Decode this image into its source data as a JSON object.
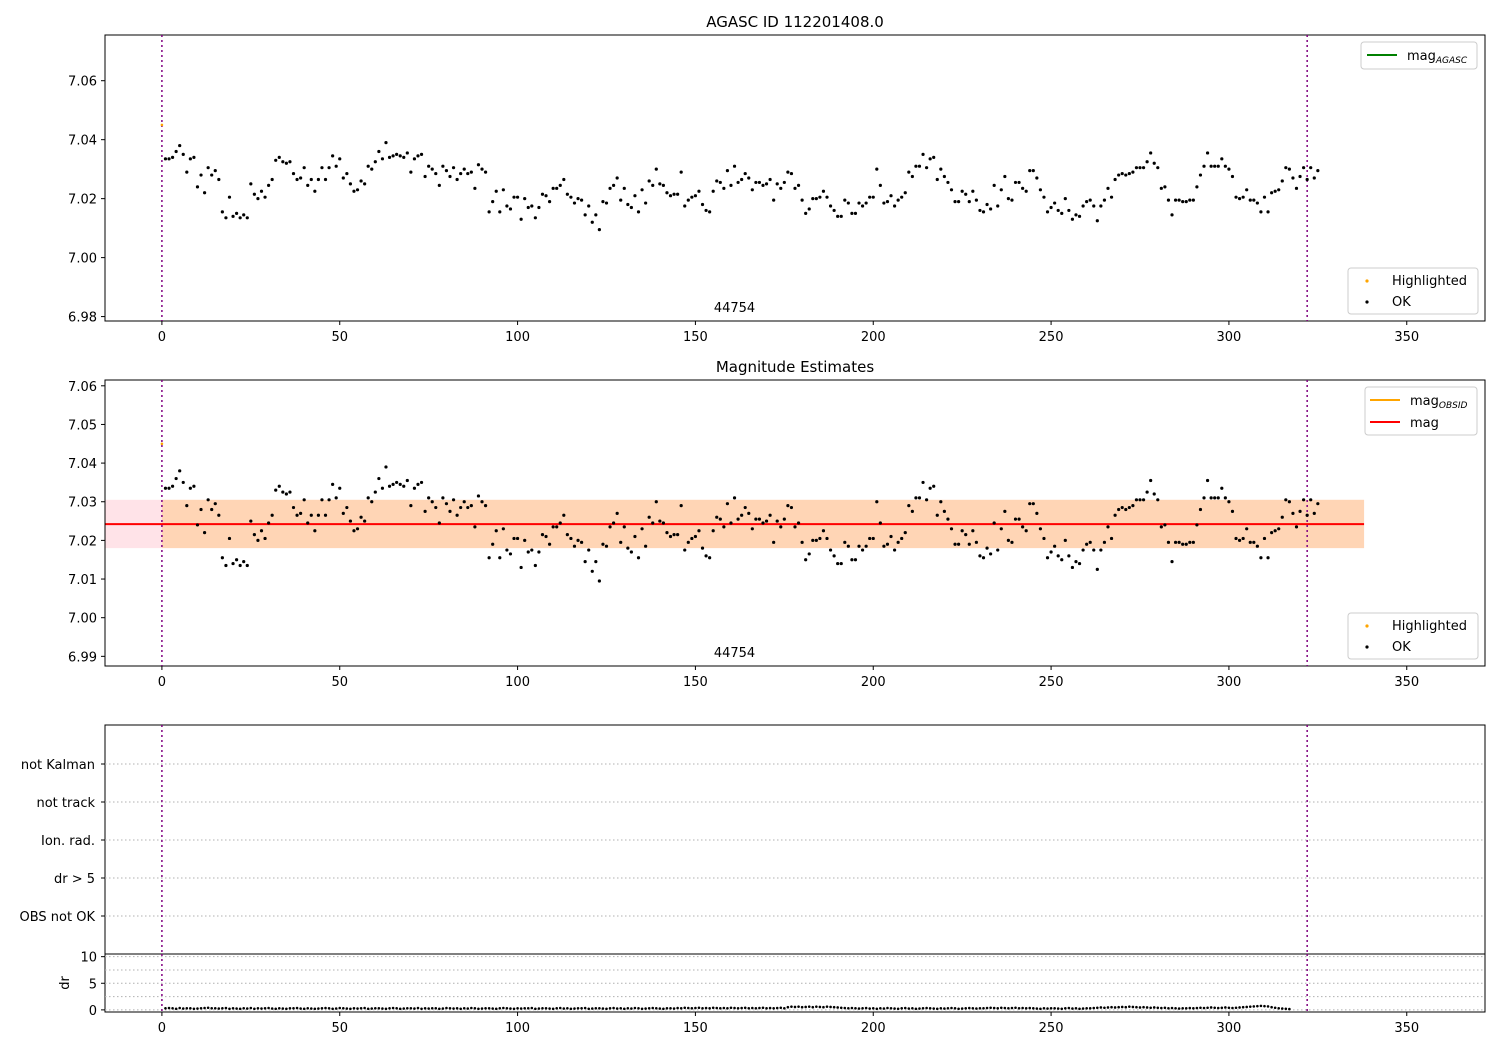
{
  "chart_data": [
    {
      "type": "scatter",
      "title": "AGASC ID 112201408.0",
      "xlim": [
        -16,
        372
      ],
      "ylim": [
        6.9785,
        7.0755
      ],
      "xticks": [
        "0",
        "50",
        "100",
        "150",
        "200",
        "250",
        "300",
        "350"
      ],
      "yticks": [
        "6.98",
        "7.00",
        "7.02",
        "7.04",
        "7.06"
      ],
      "vlines": [
        0,
        322
      ],
      "obsid_labels": [
        {
          "x": 161,
          "text": "44754"
        }
      ],
      "highlighted": [
        {
          "x": 0,
          "y": 7.045
        }
      ],
      "legend_lines": [
        {
          "label": "mag",
          "sub": "AGASC",
          "color": "#008000"
        }
      ],
      "legend_points": [
        {
          "label": "Highlighted",
          "color": "#ffa500"
        },
        {
          "label": "OK",
          "color": "#000000"
        }
      ],
      "series_ref": "mag_series"
    },
    {
      "type": "scatter",
      "title": "Magnitude Estimates",
      "xlim": [
        -16,
        372
      ],
      "ylim": [
        6.9875,
        7.0615
      ],
      "xticks": [
        "0",
        "50",
        "100",
        "150",
        "200",
        "250",
        "300",
        "350"
      ],
      "yticks": [
        "6.99",
        "7.00",
        "7.01",
        "7.02",
        "7.03",
        "7.04",
        "7.05",
        "7.06"
      ],
      "vlines": [
        0,
        322
      ],
      "obsid_labels": [
        {
          "x": 161,
          "text": "44754"
        }
      ],
      "highlighted": [
        {
          "x": 0,
          "y": 7.045
        }
      ],
      "mean_line": {
        "value": 7.0242,
        "x_range": [
          -16,
          338
        ],
        "color": "#ff0000"
      },
      "band_outer": {
        "low": 7.018,
        "high": 7.0305,
        "x_range": [
          -16,
          338
        ],
        "color": "#ffc0cb"
      },
      "band_inner": {
        "low": 7.018,
        "high": 7.0305,
        "x_range": [
          0,
          338
        ],
        "color": "#ffa500"
      },
      "legend_lines": [
        {
          "label": "mag",
          "sub": "OBSID",
          "color": "#ffa500"
        },
        {
          "label": "mag",
          "sub": "",
          "color": "#ff0000"
        }
      ],
      "legend_points": [
        {
          "label": "Highlighted",
          "color": "#ffa500"
        },
        {
          "label": "OK",
          "color": "#000000"
        }
      ],
      "series_ref": "mag_series"
    },
    {
      "type": "scatter",
      "title": "",
      "xlim": [
        -16,
        372
      ],
      "categories": [
        "not Kalman",
        "not track",
        "Ion. rad.",
        "dr > 5",
        "OBS not OK"
      ],
      "vlines": [
        0,
        322
      ],
      "grid": "horizontal dotted"
    },
    {
      "type": "scatter",
      "title": "",
      "ylabel": "dr",
      "xlim": [
        -16,
        372
      ],
      "ylim": [
        -0.4,
        10.5
      ],
      "xticks": [
        "0",
        "50",
        "100",
        "150",
        "200",
        "250",
        "300",
        "350"
      ],
      "yticks": [
        "0",
        "5",
        "10"
      ],
      "vlines": [
        0,
        322
      ],
      "series_ref": "dr_series"
    }
  ],
  "mag_series": {
    "x_start": 1,
    "x_step": 1,
    "y": [
      7.0335,
      7.0335,
      7.034,
      7.036,
      7.038,
      7.035,
      7.029,
      7.0335,
      7.034,
      7.024,
      7.028,
      7.022,
      7.0305,
      7.028,
      7.0295,
      7.0265,
      7.0155,
      7.0135,
      7.0205,
      7.014,
      7.015,
      7.0135,
      7.0145,
      7.0135,
      7.025,
      7.0215,
      7.02,
      7.0225,
      7.0205,
      7.0245,
      7.0265,
      7.033,
      7.034,
      7.0325,
      7.032,
      7.0325,
      7.0285,
      7.0265,
      7.027,
      7.0305,
      7.0245,
      7.0265,
      7.0225,
      7.0265,
      7.0305,
      7.0265,
      7.0305,
      7.0345,
      7.031,
      7.0335,
      7.027,
      7.0285,
      7.025,
      7.0225,
      7.023,
      7.026,
      7.025,
      7.031,
      7.03,
      7.0325,
      7.036,
      7.0335,
      7.039,
      7.034,
      7.0345,
      7.035,
      7.0345,
      7.034,
      7.0355,
      7.029,
      7.0335,
      7.0345,
      7.035,
      7.0275,
      7.031,
      7.03,
      7.0285,
      7.0245,
      7.031,
      7.0295,
      7.0275,
      7.0305,
      7.0265,
      7.0285,
      7.03,
      7.0285,
      7.029,
      7.0235,
      7.0315,
      7.03,
      7.029,
      7.0155,
      7.019,
      7.0225,
      7.0155,
      7.023,
      7.0175,
      7.0165,
      7.0205,
      7.0205,
      7.013,
      7.02,
      7.017,
      7.0175,
      7.0135,
      7.017,
      7.0215,
      7.021,
      7.019,
      7.0235,
      7.0235,
      7.0245,
      7.0265,
      7.0215,
      7.0205,
      7.0185,
      7.02,
      7.0195,
      7.0145,
      7.0175,
      7.012,
      7.0145,
      7.0095,
      7.019,
      7.0185,
      7.0235,
      7.0245,
      7.027,
      7.0195,
      7.0235,
      7.018,
      7.017,
      7.021,
      7.0155,
      7.023,
      7.0185,
      7.026,
      7.0245,
      7.03,
      7.025,
      7.0245,
      7.022,
      7.021,
      7.0215,
      7.0215,
      7.029,
      7.0175,
      7.0195,
      7.0205,
      7.021,
      7.0225,
      7.018,
      7.016,
      7.0155,
      7.0225,
      7.026,
      7.0255,
      7.0235,
      7.0295,
      7.0245,
      7.031,
      7.0255,
      7.0265,
      7.0285,
      7.027,
      7.023,
      7.0255,
      7.0255,
      7.0245,
      7.025,
      7.0265,
      7.0195,
      7.025,
      7.0235,
      7.0255,
      7.029,
      7.0285,
      7.0235,
      7.0245,
      7.0195,
      7.015,
      7.0165,
      7.02,
      7.02,
      7.0205,
      7.0225,
      7.0205,
      7.0175,
      7.016,
      7.014,
      7.014,
      7.0195,
      7.0185,
      7.015,
      7.015,
      7.0185,
      7.0175,
      7.0185,
      7.0205,
      7.0205,
      7.03,
      7.0245,
      7.0185,
      7.019,
      7.021,
      7.0175,
      7.0195,
      7.0205,
      7.022,
      7.029,
      7.0275,
      7.031,
      7.031,
      7.035,
      7.0305,
      7.0335,
      7.034,
      7.0265,
      7.03,
      7.0275,
      7.0255,
      7.023,
      7.019,
      7.019,
      7.0225,
      7.0215,
      7.019,
      7.0225,
      7.0195,
      7.016,
      7.0155,
      7.018,
      7.0165,
      7.0245,
      7.0175,
      7.023,
      7.0275,
      7.02,
      7.0195,
      7.0255,
      7.0255,
      7.0235,
      7.0225,
      7.0295,
      7.0295,
      7.027,
      7.023,
      7.0205,
      7.0155,
      7.017,
      7.0185,
      7.016,
      7.015,
      7.02,
      7.016,
      7.013,
      7.0145,
      7.014,
      7.0175,
      7.019,
      7.0195,
      7.0175,
      7.0125,
      7.0175,
      7.0195,
      7.0235,
      7.0205,
      7.0265,
      7.028,
      7.0285,
      7.028,
      7.0285,
      7.029,
      7.0305,
      7.0305,
      7.0305,
      7.0325,
      7.0355,
      7.032,
      7.0305,
      7.0235,
      7.024,
      7.0195,
      7.0145,
      7.0195,
      7.0195,
      7.019,
      7.019,
      7.0195,
      7.0195,
      7.024,
      7.028,
      7.031,
      7.0355,
      7.031,
      7.031,
      7.031,
      7.0335,
      7.031,
      7.03,
      7.0275,
      7.0205,
      7.02,
      7.0205,
      7.023,
      7.0195,
      7.0195,
      7.0185,
      7.0155,
      7.0205,
      7.0155,
      7.022,
      7.0225,
      7.023,
      7.026,
      7.0305,
      7.03,
      7.027,
      7.0235,
      7.0275,
      7.0305,
      7.0265,
      7.0305,
      7.027,
      7.0295
    ]
  },
  "dr_series": {
    "x_start": 1,
    "x_step": 1,
    "y": [
      0.3,
      0.35,
      0.3,
      0.2,
      0.35,
      0.25,
      0.3,
      0.3,
      0.2,
      0.25,
      0.3,
      0.35,
      0.4,
      0.3,
      0.3,
      0.25,
      0.3,
      0.35,
      0.2,
      0.3,
      0.25,
      0.2,
      0.3,
      0.25,
      0.35,
      0.2,
      0.3,
      0.25,
      0.3,
      0.35,
      0.25,
      0.2,
      0.3,
      0.25,
      0.2,
      0.3,
      0.3,
      0.35,
      0.25,
      0.2,
      0.3,
      0.25,
      0.2,
      0.25,
      0.3,
      0.35,
      0.3,
      0.2,
      0.25,
      0.35,
      0.3,
      0.25,
      0.2,
      0.3,
      0.25,
      0.3,
      0.35,
      0.2,
      0.25,
      0.3,
      0.3,
      0.25,
      0.2,
      0.3,
      0.35,
      0.3,
      0.2,
      0.25,
      0.3,
      0.3,
      0.25,
      0.35,
      0.2,
      0.3,
      0.25,
      0.3,
      0.3,
      0.2,
      0.25,
      0.35,
      0.3,
      0.25,
      0.3,
      0.2,
      0.3,
      0.25,
      0.35,
      0.3,
      0.2,
      0.25,
      0.3,
      0.3,
      0.25,
      0.2,
      0.3,
      0.35,
      0.3,
      0.25,
      0.2,
      0.3,
      0.25,
      0.3,
      0.3,
      0.35,
      0.2,
      0.25,
      0.3,
      0.3,
      0.25,
      0.2,
      0.3,
      0.35,
      0.25,
      0.3,
      0.2,
      0.25,
      0.3,
      0.3,
      0.35,
      0.2,
      0.25,
      0.3,
      0.3,
      0.25,
      0.2,
      0.3,
      0.35,
      0.25,
      0.3,
      0.2,
      0.3,
      0.25,
      0.35,
      0.3,
      0.2,
      0.25,
      0.3,
      0.35,
      0.3,
      0.25,
      0.2,
      0.3,
      0.3,
      0.25,
      0.35,
      0.3,
      0.4,
      0.35,
      0.3,
      0.35,
      0.4,
      0.3,
      0.35,
      0.3,
      0.4,
      0.35,
      0.3,
      0.35,
      0.3,
      0.4,
      0.35,
      0.3,
      0.35,
      0.4,
      0.3,
      0.35,
      0.3,
      0.35,
      0.4,
      0.3,
      0.35,
      0.3,
      0.35,
      0.4,
      0.3,
      0.5,
      0.6,
      0.55,
      0.6,
      0.5,
      0.55,
      0.6,
      0.5,
      0.6,
      0.55,
      0.5,
      0.6,
      0.55,
      0.5,
      0.45,
      0.4,
      0.35,
      0.3,
      0.35,
      0.3,
      0.25,
      0.3,
      0.35,
      0.25,
      0.3,
      0.2,
      0.3,
      0.25,
      0.35,
      0.3,
      0.25,
      0.2,
      0.3,
      0.35,
      0.25,
      0.3,
      0.2,
      0.25,
      0.3,
      0.35,
      0.3,
      0.25,
      0.2,
      0.3,
      0.25,
      0.3,
      0.35,
      0.3,
      0.2,
      0.25,
      0.3,
      0.35,
      0.3,
      0.25,
      0.3,
      0.3,
      0.35,
      0.4,
      0.35,
      0.3,
      0.4,
      0.35,
      0.3,
      0.35,
      0.4,
      0.3,
      0.35,
      0.3,
      0.35,
      0.3,
      0.25,
      0.2,
      0.3,
      0.25,
      0.3,
      0.3,
      0.25,
      0.2,
      0.3,
      0.35,
      0.25,
      0.3,
      0.2,
      0.25,
      0.3,
      0.3,
      0.35,
      0.4,
      0.45,
      0.4,
      0.45,
      0.5,
      0.45,
      0.5,
      0.55,
      0.5,
      0.6,
      0.55,
      0.5,
      0.45,
      0.5,
      0.45,
      0.4,
      0.45,
      0.4,
      0.35,
      0.4,
      0.3,
      0.35,
      0.3,
      0.25,
      0.3,
      0.3,
      0.35,
      0.3,
      0.35,
      0.4,
      0.35,
      0.4,
      0.45,
      0.4,
      0.35,
      0.4,
      0.45,
      0.4,
      0.35,
      0.4,
      0.45,
      0.5,
      0.55,
      0.6,
      0.65,
      0.7,
      0.75,
      0.7,
      0.65,
      0.5,
      0.4,
      0.3,
      0.25,
      0.2,
      0.15
    ]
  }
}
